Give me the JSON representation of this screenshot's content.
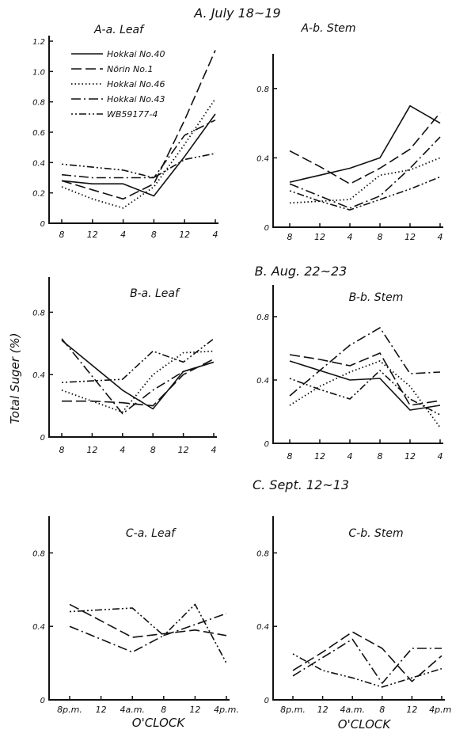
{
  "figure": {
    "ylabel": "Total Suger (%)",
    "xlabel": "O'CLOCK",
    "legend": [
      "Hokkai No.40",
      "Nōrin No.1",
      "Hokkai No.46",
      "Hokkai No.43",
      "WB59177-4"
    ],
    "sections": [
      "A. July 18~19",
      "B. Aug. 22~23",
      "C. Sept. 12~13"
    ]
  },
  "chart_data": [
    {
      "type": "line",
      "title": "A-a. Leaf",
      "section": "A",
      "categories": [
        "8",
        "12",
        "4",
        "8",
        "12",
        "4"
      ],
      "ylim": [
        0,
        1.2
      ],
      "yticks": [
        0,
        0.2,
        0.4,
        0.6,
        0.8,
        1.0,
        1.2
      ],
      "ytick_labels": [
        "0",
        "0.2",
        "0.4",
        "0.6",
        "0.8",
        "1.0",
        "1.2"
      ],
      "series": [
        {
          "name": "Hokkai No.40",
          "values": [
            0.28,
            0.26,
            0.26,
            0.18,
            0.44,
            0.72
          ]
        },
        {
          "name": "Nōrin No.1",
          "values": [
            0.28,
            0.22,
            0.16,
            0.26,
            0.68,
            1.14
          ]
        },
        {
          "name": "Hokkai No.46",
          "values": [
            0.24,
            0.16,
            0.1,
            0.24,
            0.52,
            0.82
          ]
        },
        {
          "name": "Hokkai No.43",
          "values": [
            0.32,
            0.3,
            0.3,
            0.3,
            0.58,
            0.68
          ]
        },
        {
          "name": "WB59177-4",
          "values": [
            0.39,
            0.37,
            0.35,
            0.3,
            0.42,
            0.46
          ]
        }
      ]
    },
    {
      "type": "line",
      "title": "A-b. Stem",
      "section": "A",
      "categories": [
        "8",
        "12",
        "4",
        "8",
        "12",
        "4"
      ],
      "ylim": [
        0,
        1.0
      ],
      "yticks": [
        0,
        0.4,
        0.8
      ],
      "ytick_labels": [
        "0",
        "0.4",
        "0.8"
      ],
      "series": [
        {
          "name": "Hokkai No.40",
          "values": [
            0.26,
            0.3,
            0.34,
            0.4,
            0.7,
            0.6
          ]
        },
        {
          "name": "Nōrin No.1",
          "values": [
            0.44,
            0.35,
            0.25,
            0.34,
            0.45,
            0.66
          ]
        },
        {
          "name": "Hokkai No.46",
          "values": [
            0.14,
            0.15,
            0.16,
            0.3,
            0.33,
            0.4
          ]
        },
        {
          "name": "Hokkai No.43",
          "values": [
            0.25,
            0.18,
            0.11,
            0.18,
            0.34,
            0.52
          ]
        },
        {
          "name": "WB59177-4",
          "values": [
            0.21,
            0.15,
            0.1,
            0.16,
            0.22,
            0.29
          ]
        }
      ]
    },
    {
      "type": "line",
      "title": "B-a. Leaf",
      "section": "B",
      "categories": [
        "8",
        "12",
        "4",
        "8",
        "12",
        "4"
      ],
      "ylim": [
        0,
        1.0
      ],
      "yticks": [
        0,
        0.4,
        0.8
      ],
      "ytick_labels": [
        "0",
        "0.4",
        "0.8"
      ],
      "series": [
        {
          "name": "Hokkai No.40",
          "values": [
            0.62,
            0.46,
            0.3,
            0.18,
            0.42,
            0.48
          ]
        },
        {
          "name": "Nōrin No.1",
          "values": [
            0.23,
            0.23,
            0.22,
            0.2,
            0.4,
            0.5
          ]
        },
        {
          "name": "Hokkai No.46",
          "values": [
            0.3,
            0.23,
            0.16,
            0.4,
            0.54,
            0.55
          ]
        },
        {
          "name": "Hokkai No.43",
          "values": [
            0.63,
            0.39,
            0.15,
            0.3,
            0.42,
            0.48
          ]
        },
        {
          "name": "WB59177-4",
          "values": [
            0.35,
            0.36,
            0.37,
            0.55,
            0.48,
            0.63
          ]
        }
      ]
    },
    {
      "type": "line",
      "title": "B-b. Stem",
      "section": "B",
      "categories": [
        "8",
        "12",
        "4",
        "8",
        "12",
        "4"
      ],
      "ylim": [
        0,
        1.0
      ],
      "yticks": [
        0,
        0.4,
        0.8
      ],
      "ytick_labels": [
        "0",
        "0.4",
        "0.8"
      ],
      "series": [
        {
          "name": "Hokkai No.40",
          "values": [
            0.52,
            0.46,
            0.4,
            0.41,
            0.21,
            0.24
          ]
        },
        {
          "name": "Nōrin No.1",
          "values": [
            0.56,
            0.53,
            0.49,
            0.57,
            0.24,
            0.27
          ]
        },
        {
          "name": "Hokkai No.46",
          "values": [
            0.24,
            0.36,
            0.45,
            0.52,
            0.36,
            0.1
          ]
        },
        {
          "name": "Hokkai No.43",
          "values": [
            0.3,
            0.46,
            0.62,
            0.73,
            0.44,
            0.45
          ]
        },
        {
          "name": "WB59177-4",
          "values": [
            0.41,
            0.34,
            0.28,
            0.46,
            0.28,
            0.18
          ]
        }
      ]
    },
    {
      "type": "line",
      "title": "C-a. Leaf",
      "section": "C",
      "categories": [
        "8p.m.",
        "12",
        "4a.m.",
        "8",
        "12",
        "4p.m."
      ],
      "ylim": [
        0,
        1.0
      ],
      "yticks": [
        0,
        0.4,
        0.8
      ],
      "ytick_labels": [
        "0",
        "0.4",
        "0.8"
      ],
      "series": [
        {
          "name": "Nōrin No.1",
          "values": [
            0.52,
            0.43,
            0.34,
            0.36,
            0.38,
            0.35
          ]
        },
        {
          "name": "Hokkai No.43",
          "values": [
            0.4,
            0.33,
            0.26,
            0.35,
            0.41,
            0.47
          ]
        },
        {
          "name": "WB59177-4",
          "values": [
            0.48,
            0.49,
            0.5,
            0.35,
            0.52,
            0.2
          ]
        }
      ]
    },
    {
      "type": "line",
      "title": "C-b. Stem",
      "section": "C",
      "categories": [
        "8p.m.",
        "12",
        "4a.m.",
        "8",
        "12",
        "4p.m."
      ],
      "ylim": [
        0,
        1.0
      ],
      "yticks": [
        0,
        0.4,
        0.8
      ],
      "ytick_labels": [
        "0",
        "0.4",
        "0.8"
      ],
      "series": [
        {
          "name": "Nōrin No.1",
          "values": [
            0.16,
            0.26,
            0.37,
            0.28,
            0.1,
            0.24
          ]
        },
        {
          "name": "Hokkai No.43",
          "values": [
            0.13,
            0.23,
            0.33,
            0.09,
            0.28,
            0.28
          ]
        },
        {
          "name": "WB59177-4",
          "values": [
            0.25,
            0.16,
            0.12,
            0.07,
            0.12,
            0.17
          ]
        }
      ]
    }
  ]
}
